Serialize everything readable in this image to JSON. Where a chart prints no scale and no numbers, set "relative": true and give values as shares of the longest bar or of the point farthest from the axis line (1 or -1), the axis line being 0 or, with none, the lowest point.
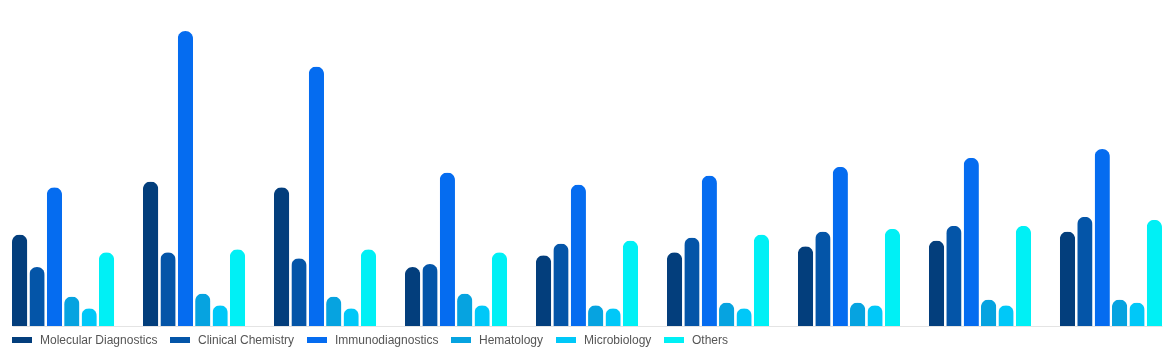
{
  "chart_data": {
    "type": "bar",
    "relative": true,
    "legend": "bottom",
    "categories": [
      null,
      null,
      null,
      null,
      null,
      null,
      null,
      null,
      null
    ],
    "series": [
      {
        "name": "Molecular Diagnostics",
        "color": "#033e7c",
        "values": [
          0.31,
          0.49,
          0.47,
          0.2,
          0.24,
          0.25,
          0.27,
          0.29,
          0.32
        ]
      },
      {
        "name": "Clinical Chemistry",
        "color": "#0455a8",
        "values": [
          0.2,
          0.25,
          0.23,
          0.21,
          0.28,
          0.3,
          0.32,
          0.34,
          0.37
        ]
      },
      {
        "name": "Immunodiagnostics",
        "color": "#056cf0",
        "values": [
          0.47,
          1,
          0.88,
          0.52,
          0.48,
          0.51,
          0.54,
          0.57,
          0.6
        ]
      },
      {
        "name": "Hematology",
        "color": "#06a3e0",
        "values": [
          0.1,
          0.11,
          0.1,
          0.11,
          0.07,
          0.08,
          0.08,
          0.09,
          0.09
        ]
      },
      {
        "name": "Microbiology",
        "color": "#00c8f8",
        "values": [
          0.06,
          0.07,
          0.06,
          0.07,
          0.06,
          0.06,
          0.07,
          0.07,
          0.08
        ]
      },
      {
        "name": "Others",
        "color": "#00f0f5",
        "values": [
          0.25,
          0.26,
          0.26,
          0.25,
          0.29,
          0.31,
          0.33,
          0.34,
          0.36
        ]
      }
    ]
  }
}
